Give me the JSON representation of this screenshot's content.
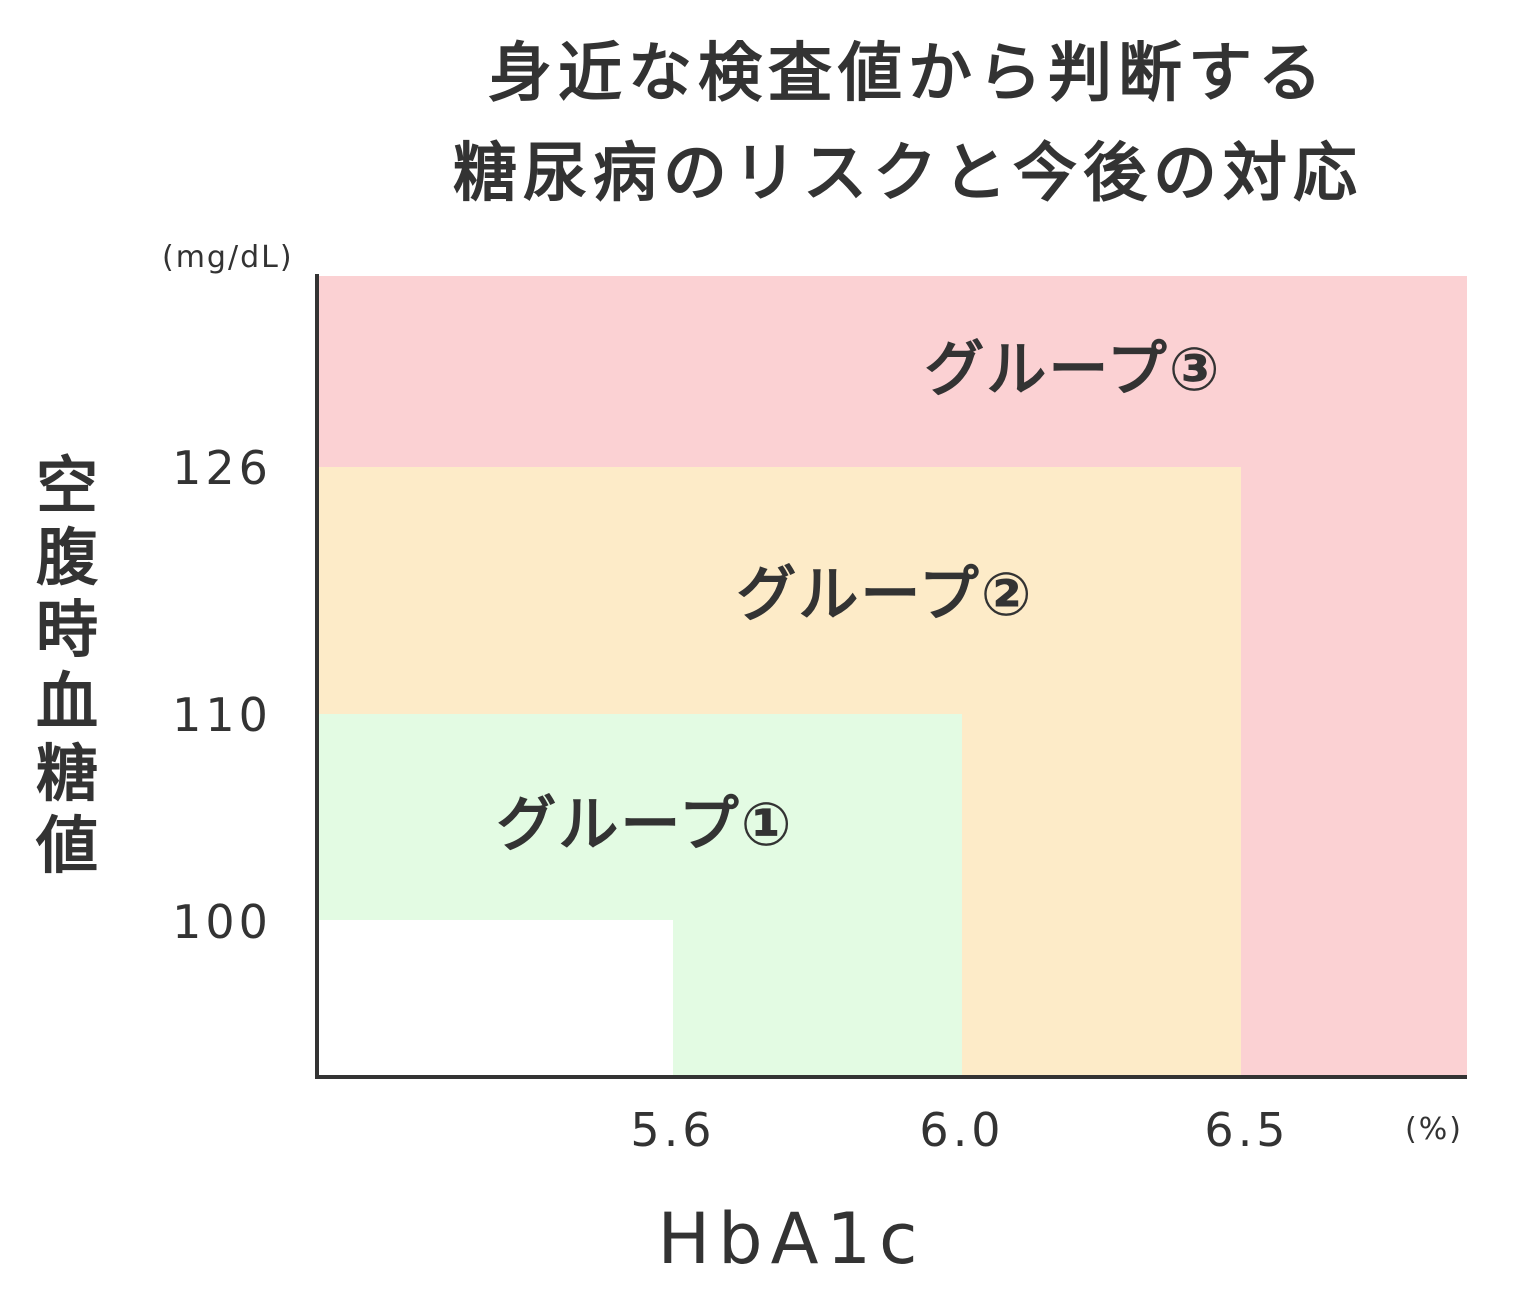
{
  "chart_data": {
    "type": "heatmap",
    "title_lines": [
      "身近な検査値から判断する",
      "糖尿病のリスクと今後の対応"
    ],
    "xlabel": "HbA1c",
    "x_unit": "(%)",
    "ylabel": "空腹時血糖値",
    "y_unit": "(mg/dL)",
    "x_ticks": [
      "5.6",
      "6.0",
      "6.5"
    ],
    "y_ticks": [
      "126",
      "110",
      "100"
    ],
    "regions": [
      {
        "name": "グループ③",
        "hba1c_below": null,
        "fpg_below": null,
        "color": "#fbd1d3"
      },
      {
        "name": "グループ②",
        "hba1c_below": 6.5,
        "fpg_below": 126,
        "color": "#fdebc8"
      },
      {
        "name": "グループ①",
        "hba1c_below": 6.0,
        "fpg_below": 110,
        "color": "#e3fbe3"
      },
      {
        "name": "",
        "hba1c_below": 5.6,
        "fpg_below": 100,
        "color": "#ffffff"
      }
    ],
    "axis_color": "#333333"
  }
}
